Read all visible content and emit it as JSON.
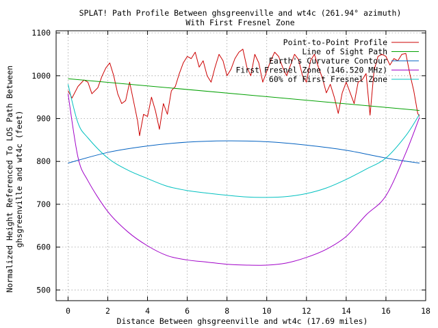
{
  "chart_data": {
    "type": "line",
    "title_line1": "SPLAT! Path Profile Between ghsgreenville and wt4c (261.94° azimuth)",
    "title_line2": "With First Fresnel Zone",
    "xlabel": "Distance Between ghsgreenville and wt4c (17.69 miles)",
    "ylabel_line1": "Normalized Height Referenced To LOS Path Between",
    "ylabel_line2": "ghsgreenville and wt4c (feet)",
    "xlim": [
      -0.6,
      18
    ],
    "ylim": [
      475,
      1105
    ],
    "xticks": [
      0,
      2,
      4,
      6,
      8,
      10,
      12,
      14,
      16,
      18
    ],
    "yticks": [
      500,
      600,
      700,
      800,
      900,
      1000,
      1100
    ],
    "grid": true,
    "legend_position": "top-right",
    "series": [
      {
        "name": "Point-to-Point Profile",
        "color": "#cc0000",
        "x": [
          0,
          0.2,
          0.5,
          0.8,
          1.0,
          1.2,
          1.5,
          1.7,
          1.9,
          2.1,
          2.3,
          2.5,
          2.7,
          2.9,
          3.1,
          3.3,
          3.5,
          3.6,
          3.8,
          4.0,
          4.2,
          4.4,
          4.6,
          4.8,
          5.0,
          5.2,
          5.4,
          5.6,
          5.8,
          6.0,
          6.2,
          6.4,
          6.6,
          6.8,
          7.0,
          7.2,
          7.4,
          7.6,
          7.8,
          8.0,
          8.2,
          8.4,
          8.6,
          8.8,
          9.0,
          9.2,
          9.4,
          9.6,
          9.8,
          10.0,
          10.2,
          10.4,
          10.6,
          10.8,
          11.0,
          11.2,
          11.4,
          11.6,
          11.8,
          12.0,
          12.2,
          12.4,
          12.6,
          12.8,
          13.0,
          13.2,
          13.4,
          13.6,
          13.8,
          14.0,
          14.2,
          14.4,
          14.6,
          14.8,
          15.0,
          15.2,
          15.4,
          15.6,
          15.8,
          16.0,
          16.2,
          16.4,
          16.6,
          16.8,
          17.0,
          17.2,
          17.4,
          17.6,
          17.69
        ],
        "values": [
          965,
          948,
          975,
          990,
          985,
          958,
          972,
          998,
          1018,
          1030,
          1000,
          958,
          935,
          942,
          985,
          940,
          895,
          860,
          910,
          905,
          950,
          918,
          875,
          935,
          910,
          965,
          975,
          1005,
          1030,
          1045,
          1040,
          1055,
          1020,
          1035,
          1000,
          985,
          1020,
          1050,
          1035,
          1000,
          1015,
          1040,
          1055,
          1062,
          1020,
          1000,
          1050,
          1030,
          985,
          1010,
          1035,
          1055,
          1045,
          1020,
          1000,
          1025,
          1050,
          1038,
          1000,
          985,
          1035,
          1050,
          1020,
          995,
          960,
          980,
          950,
          912,
          960,
          985,
          960,
          935,
          985,
          990,
          1005,
          908,
          1012,
          1045,
          1050,
          1045,
          1025,
          1040,
          1035,
          1050,
          1052,
          1005,
          965,
          912,
          905
        ]
      },
      {
        "name": "Line of Sight Path",
        "color": "#00a000",
        "x": [
          0,
          17.69
        ],
        "values": [
          993,
          919
        ]
      },
      {
        "name": "Earth's Curvature Contour",
        "color": "#0060c0",
        "x": [
          0,
          2,
          4,
          6,
          8,
          10,
          12,
          14,
          16,
          17.69
        ],
        "values": [
          796,
          821,
          836,
          845,
          848,
          846,
          838,
          826,
          808,
          796
        ]
      },
      {
        "name": "First Fresnel Zone (146.520 MHz)",
        "color": "#a000c8",
        "x": [
          0,
          0.5,
          1,
          2,
          3,
          4,
          5,
          6,
          7,
          8,
          9,
          10,
          11,
          12,
          13,
          14,
          15,
          16,
          17,
          17.69
        ],
        "values": [
          958,
          810,
          755,
          683,
          636,
          603,
          580,
          570,
          565,
          560,
          558,
          558,
          563,
          576,
          595,
          625,
          675,
          720,
          820,
          903
        ]
      },
      {
        "name": "60% of First Fresnel Zone",
        "color": "#00c0c0",
        "x": [
          0,
          0.5,
          1,
          2,
          3,
          4,
          5,
          6,
          7,
          8,
          9,
          10,
          11,
          12,
          13,
          14,
          15,
          16,
          17,
          17.69
        ],
        "values": [
          980,
          890,
          855,
          808,
          780,
          760,
          742,
          732,
          726,
          721,
          717,
          716,
          718,
          725,
          738,
          758,
          782,
          808,
          860,
          910
        ]
      }
    ]
  }
}
